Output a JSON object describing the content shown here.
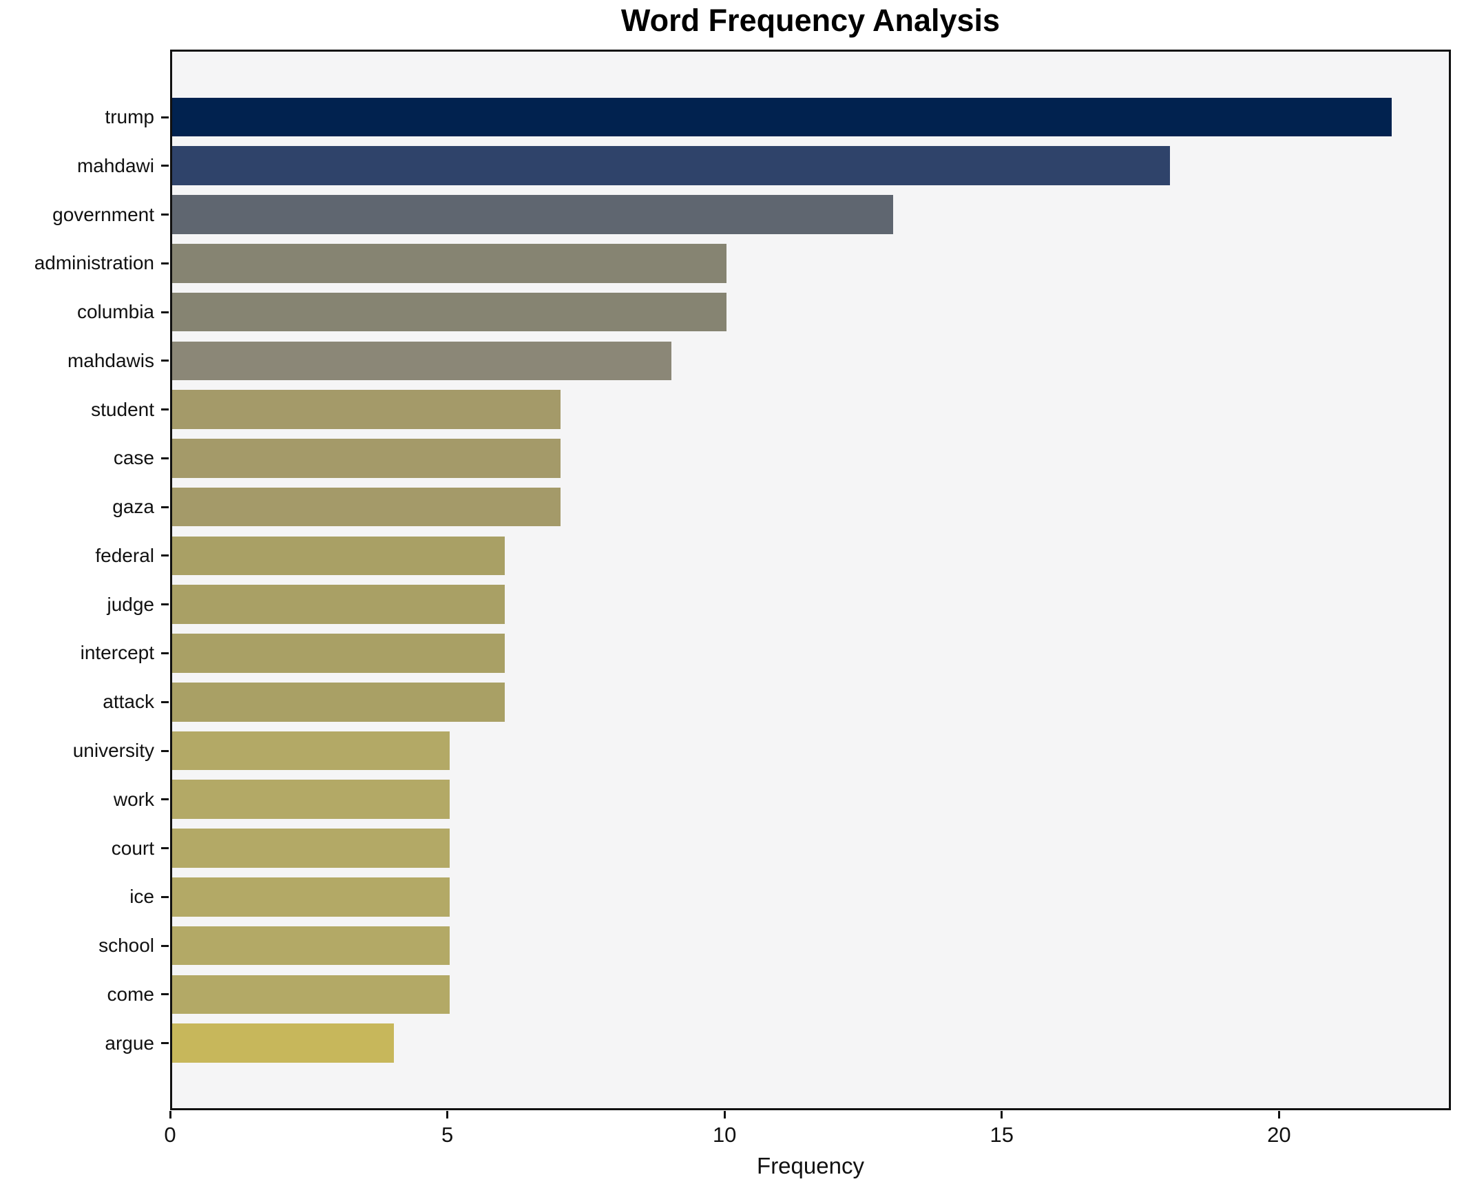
{
  "title": "Word Frequency Analysis",
  "chart_data": {
    "type": "bar",
    "orientation": "horizontal",
    "title": "Word Frequency Analysis",
    "xlabel": "Frequency",
    "ylabel": "",
    "xlim": [
      0,
      23.1
    ],
    "xticks": [
      0,
      5,
      10,
      15,
      20
    ],
    "grid": false,
    "legend": "none",
    "plot_background": "#f5f5f6",
    "figure_background": "#ffffff",
    "categories": [
      "trump",
      "mahdawi",
      "government",
      "administration",
      "columbia",
      "mahdawis",
      "student",
      "case",
      "gaza",
      "federal",
      "judge",
      "intercept",
      "attack",
      "university",
      "work",
      "court",
      "ice",
      "school",
      "come",
      "argue"
    ],
    "values": [
      22,
      18,
      13,
      10,
      10,
      9,
      7,
      7,
      7,
      6,
      6,
      6,
      6,
      5,
      5,
      5,
      5,
      5,
      5,
      4
    ],
    "bar_colors": [
      "#01224f",
      "#2f436a",
      "#5f6670",
      "#868472",
      "#868472",
      "#8b8777",
      "#a49a69",
      "#a49a69",
      "#a49a69",
      "#a9a065",
      "#a9a065",
      "#a9a065",
      "#a9a065",
      "#b3a966",
      "#b3a966",
      "#b3a966",
      "#b3a966",
      "#b3a966",
      "#b3a966",
      "#c7b75b"
    ]
  }
}
